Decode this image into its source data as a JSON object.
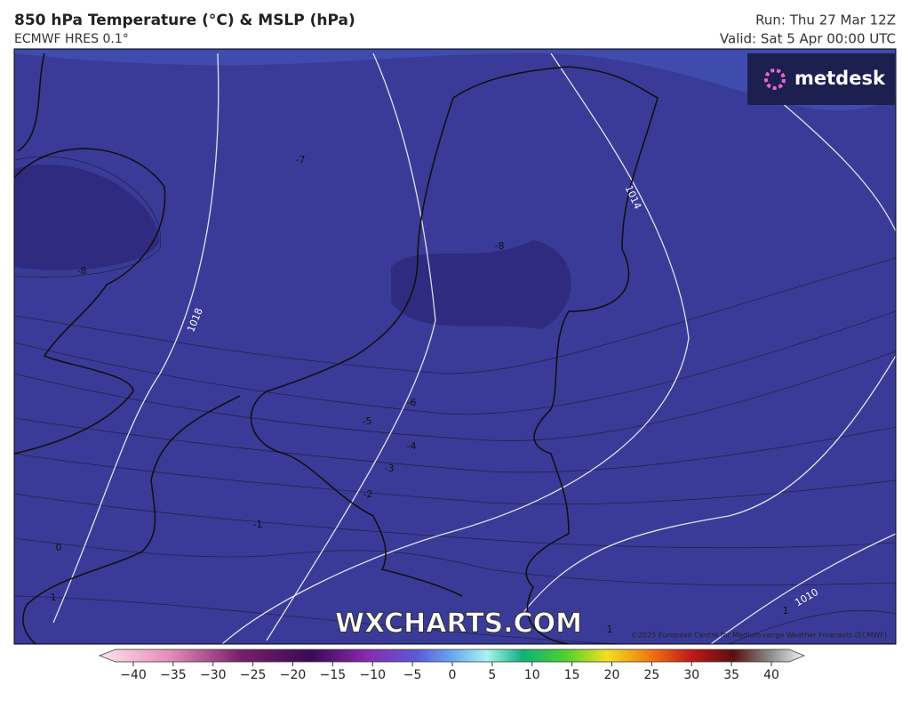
{
  "header": {
    "title": "850 hPa Temperature (°C) & MSLP (hPa)",
    "model": "ECMWF HRES 0.1°",
    "run": "Run: Thu 27 Mar 12Z",
    "valid": "Valid: Sat 5 Apr 00:00 UTC"
  },
  "map": {
    "temperature_labels": [
      -7,
      -8,
      -8,
      -6,
      -5,
      -4,
      -3,
      -2,
      -1,
      0,
      1,
      1,
      1
    ],
    "isobar_labels": [
      1018,
      1014,
      1010
    ],
    "logo": "metdesk",
    "watermark": "WXCHARTS.COM",
    "copyright": "©2025 European Centre for Medium-range Weather Forecasts (ECMWF)"
  },
  "colorbar": {
    "ticks": [
      {
        "value": -40,
        "label": "−40"
      },
      {
        "value": -35,
        "label": "−35"
      },
      {
        "value": -30,
        "label": "−30"
      },
      {
        "value": -25,
        "label": "−25"
      },
      {
        "value": -20,
        "label": "−20"
      },
      {
        "value": -15,
        "label": "−15"
      },
      {
        "value": -10,
        "label": "−10"
      },
      {
        "value": -5,
        "label": "−5"
      },
      0,
      5,
      10,
      15,
      20,
      25,
      30,
      35,
      40
    ]
  }
}
